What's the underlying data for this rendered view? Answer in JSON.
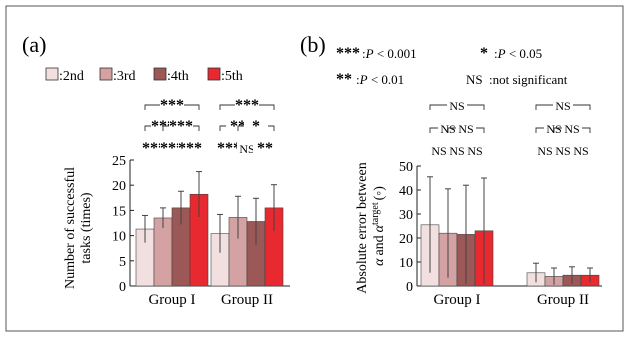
{
  "panels": {
    "a": "(a)",
    "b": "(b)"
  },
  "legend": {
    "series": [
      {
        "label": ":2nd",
        "color": "#f2dfdf"
      },
      {
        "label": ":3rd",
        "color": "#d4a2a2"
      },
      {
        "label": ":4th",
        "color": "#9c5757"
      },
      {
        "label": ":5th",
        "color": "#e8292f"
      }
    ],
    "significance": [
      {
        "marker": "***",
        "text": ":P < 0.001"
      },
      {
        "marker": "*",
        "text": ":P < 0.05"
      },
      {
        "marker": "**",
        "text": ":P < 0.01"
      },
      {
        "marker": "NS",
        "text": ":not significant"
      }
    ]
  },
  "chart_data": [
    {
      "panel": "(a)",
      "type": "bar",
      "categories": [
        "Group I",
        "Group II"
      ],
      "series": [
        {
          "name": ":2nd",
          "values": [
            11.3,
            10.4
          ],
          "errors": [
            2.7,
            3.8
          ]
        },
        {
          "name": ":3rd",
          "values": [
            13.5,
            13.6
          ],
          "errors": [
            2.0,
            4.2
          ]
        },
        {
          "name": ":4th",
          "values": [
            15.5,
            12.8
          ],
          "errors": [
            3.3,
            4.6
          ]
        },
        {
          "name": ":5th",
          "values": [
            18.2,
            15.5
          ],
          "errors": [
            4.5,
            4.6
          ]
        }
      ],
      "ylabel_lines": [
        "Number of successful",
        "tasks (times)"
      ],
      "ylim": [
        0,
        25
      ],
      "yticks": [
        "0",
        "5",
        "10",
        "15",
        "20",
        "25"
      ],
      "significance": [
        {
          "category": 0,
          "from": 0,
          "to": 3,
          "level": 3,
          "label": "***"
        },
        {
          "category": 0,
          "from": 0,
          "to": 2,
          "level": 2,
          "label": "***"
        },
        {
          "category": 0,
          "from": 0,
          "to": 1,
          "level": 1,
          "label": "***"
        },
        {
          "category": 0,
          "from": 1,
          "to": 3,
          "level": 2,
          "label": "***"
        },
        {
          "category": 0,
          "from": 1,
          "to": 2,
          "level": 1,
          "label": "***"
        },
        {
          "category": 0,
          "from": 2,
          "to": 3,
          "level": 1,
          "label": "***"
        },
        {
          "category": 1,
          "from": 0,
          "to": 3,
          "level": 3,
          "label": "***"
        },
        {
          "category": 1,
          "from": 0,
          "to": 2,
          "level": 2,
          "label": "**"
        },
        {
          "category": 1,
          "from": 0,
          "to": 1,
          "level": 1,
          "label": "***"
        },
        {
          "category": 1,
          "from": 1,
          "to": 3,
          "level": 2,
          "label": "*"
        },
        {
          "category": 1,
          "from": 1,
          "to": 2,
          "level": 1,
          "label": "NS"
        },
        {
          "category": 1,
          "from": 2,
          "to": 3,
          "level": 1,
          "label": "**"
        }
      ]
    },
    {
      "panel": "(b)",
      "type": "bar",
      "categories": [
        "Group I",
        "Group II"
      ],
      "series": [
        {
          "name": ":2nd",
          "values": [
            25.5,
            5.5
          ],
          "errors": [
            20.0,
            4.0
          ]
        },
        {
          "name": ":3rd",
          "values": [
            22.0,
            4.0
          ],
          "errors": [
            18.5,
            3.5
          ]
        },
        {
          "name": ":4th",
          "values": [
            21.5,
            4.5
          ],
          "errors": [
            20.5,
            3.5
          ]
        },
        {
          "name": ":5th",
          "values": [
            23.0,
            4.5
          ],
          "errors": [
            22.0,
            3.0
          ]
        }
      ],
      "ylabel_line1": "Absolute error between",
      "ylabel_line2": "and",
      "ylim": [
        0,
        50
      ],
      "yticks": [
        "0",
        "10",
        "20",
        "30",
        "40",
        "50"
      ],
      "significance": [
        {
          "category": 0,
          "from": 0,
          "to": 3,
          "level": 3,
          "label": "NS"
        },
        {
          "category": 0,
          "from": 0,
          "to": 2,
          "level": 2,
          "label": "NS"
        },
        {
          "category": 0,
          "from": 0,
          "to": 1,
          "level": 1,
          "label": "NS"
        },
        {
          "category": 0,
          "from": 1,
          "to": 3,
          "level": 2,
          "label": "NS"
        },
        {
          "category": 0,
          "from": 1,
          "to": 2,
          "level": 1,
          "label": "NS"
        },
        {
          "category": 0,
          "from": 2,
          "to": 3,
          "level": 1,
          "label": "NS"
        },
        {
          "category": 1,
          "from": 0,
          "to": 3,
          "level": 3,
          "label": "NS"
        },
        {
          "category": 1,
          "from": 0,
          "to": 2,
          "level": 2,
          "label": "NS"
        },
        {
          "category": 1,
          "from": 0,
          "to": 1,
          "level": 1,
          "label": "NS"
        },
        {
          "category": 1,
          "from": 1,
          "to": 3,
          "level": 2,
          "label": "NS"
        },
        {
          "category": 1,
          "from": 1,
          "to": 2,
          "level": 1,
          "label": "NS"
        },
        {
          "category": 1,
          "from": 2,
          "to": 3,
          "level": 1,
          "label": "NS"
        }
      ]
    }
  ]
}
